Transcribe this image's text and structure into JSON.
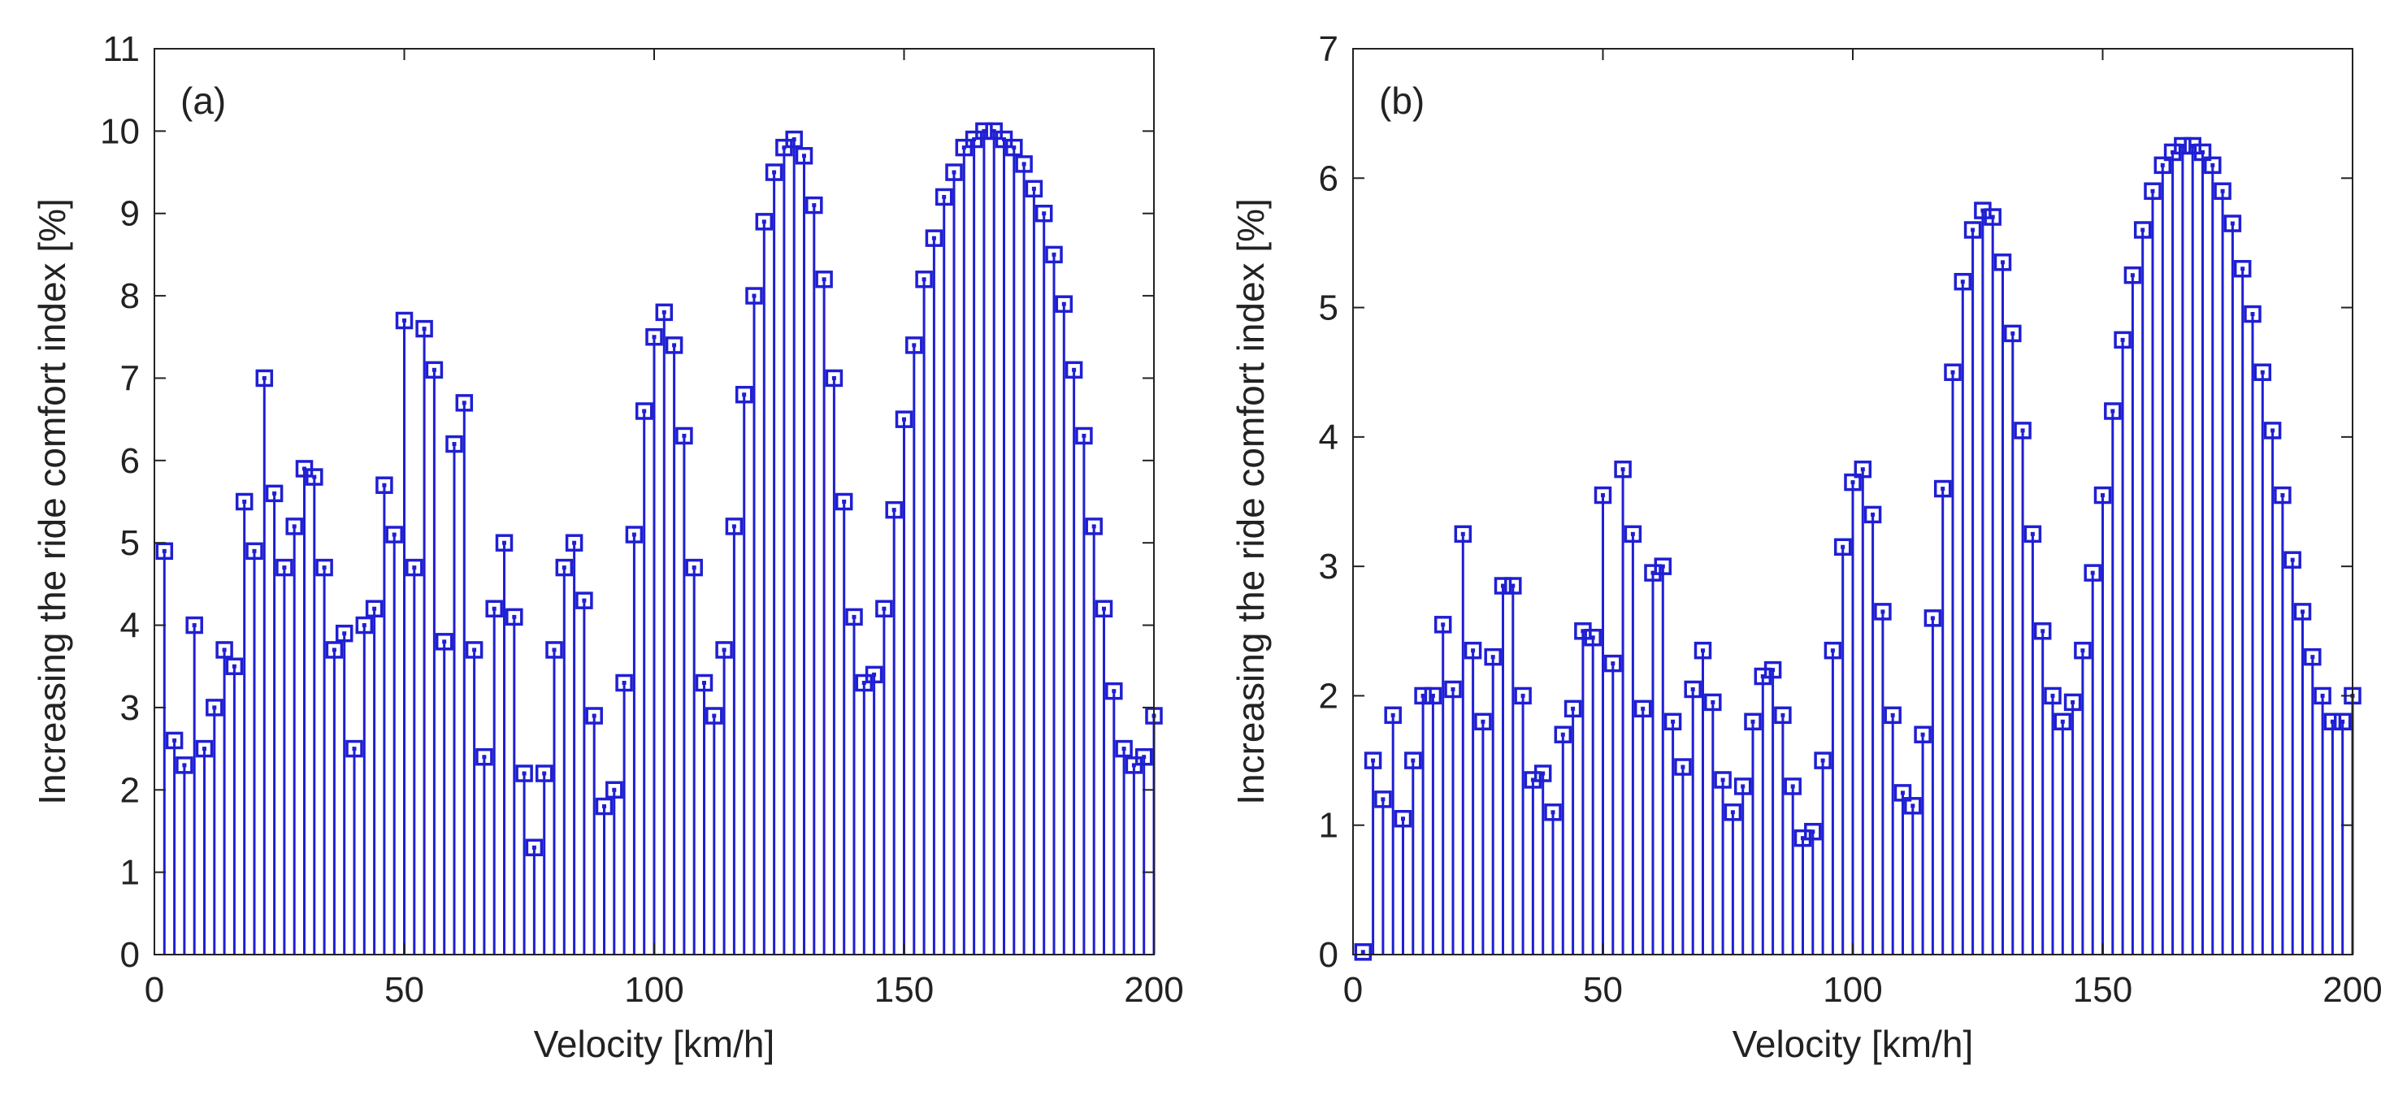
{
  "chart_data": [
    {
      "type": "stem",
      "panel_label": "(a)",
      "title": "",
      "xlabel": "Velocity [km/h]",
      "ylabel": "Increasing the ride comfort index [%]",
      "xlim": [
        0,
        200
      ],
      "ylim": [
        0,
        11
      ],
      "xticks": [
        "0",
        "50",
        "100",
        "150",
        "200"
      ],
      "yticks": [
        "0",
        "1",
        "2",
        "3",
        "4",
        "5",
        "6",
        "7",
        "8",
        "9",
        "10",
        "11"
      ],
      "marker": "square",
      "color": "#1f1fd4",
      "x": [
        2,
        4,
        6,
        8,
        10,
        12,
        14,
        16,
        18,
        20,
        22,
        24,
        26,
        28,
        30,
        32,
        34,
        36,
        38,
        40,
        42,
        44,
        46,
        48,
        50,
        52,
        54,
        56,
        58,
        60,
        62,
        64,
        66,
        68,
        70,
        72,
        74,
        76,
        78,
        80,
        82,
        84,
        86,
        88,
        90,
        92,
        94,
        96,
        98,
        100,
        102,
        104,
        106,
        108,
        110,
        112,
        114,
        116,
        118,
        120,
        122,
        124,
        126,
        128,
        130,
        132,
        134,
        136,
        138,
        140,
        142,
        144,
        146,
        148,
        150,
        152,
        154,
        156,
        158,
        160,
        162,
        164,
        166,
        168,
        170,
        172,
        174,
        176,
        178,
        180,
        182,
        184,
        186,
        188,
        190,
        192,
        194,
        196,
        198,
        200
      ],
      "values": [
        4.9,
        2.6,
        2.3,
        4.0,
        2.5,
        3.0,
        3.7,
        3.5,
        5.5,
        4.9,
        7.0,
        5.6,
        4.7,
        5.2,
        5.9,
        5.8,
        4.7,
        3.7,
        3.9,
        2.5,
        4.0,
        4.2,
        5.7,
        5.1,
        7.7,
        4.7,
        7.6,
        7.1,
        3.8,
        6.2,
        6.7,
        3.7,
        2.4,
        4.2,
        5.0,
        4.1,
        2.2,
        1.3,
        2.2,
        3.7,
        4.7,
        5.0,
        4.3,
        2.9,
        1.8,
        2.0,
        3.3,
        5.1,
        6.6,
        7.5,
        7.8,
        7.4,
        6.3,
        4.7,
        3.3,
        2.9,
        3.7,
        5.2,
        6.8,
        8.0,
        8.9,
        9.5,
        9.8,
        9.9,
        9.7,
        9.1,
        8.2,
        7.0,
        5.5,
        4.1,
        3.3,
        3.4,
        4.2,
        5.4,
        6.5,
        7.4,
        8.2,
        8.7,
        9.2,
        9.5,
        9.8,
        9.9,
        10.0,
        10.0,
        9.9,
        9.8,
        9.6,
        9.3,
        9.0,
        8.5,
        7.9,
        7.1,
        6.3,
        5.2,
        4.2,
        3.2,
        2.5,
        2.3,
        2.4,
        2.9
      ]
    },
    {
      "type": "stem",
      "panel_label": "(b)",
      "title": "",
      "xlabel": "Velocity [km/h]",
      "ylabel": "Increasing the ride comfort index [%]",
      "xlim": [
        0,
        200
      ],
      "ylim": [
        0,
        7
      ],
      "xticks": [
        "0",
        "50",
        "100",
        "150",
        "200"
      ],
      "yticks": [
        "0",
        "1",
        "2",
        "3",
        "4",
        "5",
        "6",
        "7"
      ],
      "marker": "square",
      "color": "#1f1fd4",
      "x": [
        2,
        4,
        6,
        8,
        10,
        12,
        14,
        16,
        18,
        20,
        22,
        24,
        26,
        28,
        30,
        32,
        34,
        36,
        38,
        40,
        42,
        44,
        46,
        48,
        50,
        52,
        54,
        56,
        58,
        60,
        62,
        64,
        66,
        68,
        70,
        72,
        74,
        76,
        78,
        80,
        82,
        84,
        86,
        88,
        90,
        92,
        94,
        96,
        98,
        100,
        102,
        104,
        106,
        108,
        110,
        112,
        114,
        116,
        118,
        120,
        122,
        124,
        126,
        128,
        130,
        132,
        134,
        136,
        138,
        140,
        142,
        144,
        146,
        148,
        150,
        152,
        154,
        156,
        158,
        160,
        162,
        164,
        166,
        168,
        170,
        172,
        174,
        176,
        178,
        180,
        182,
        184,
        186,
        188,
        190,
        192,
        194,
        196,
        198,
        200
      ],
      "values": [
        0.02,
        1.5,
        1.2,
        1.85,
        1.05,
        1.5,
        2.0,
        2.0,
        2.55,
        2.05,
        3.25,
        2.35,
        1.8,
        2.3,
        2.85,
        2.85,
        2.0,
        1.35,
        1.4,
        1.1,
        1.7,
        1.9,
        2.5,
        2.45,
        3.55,
        2.25,
        3.75,
        3.25,
        1.9,
        2.95,
        3.0,
        1.8,
        1.45,
        2.05,
        2.35,
        1.95,
        1.35,
        1.1,
        1.3,
        1.8,
        2.15,
        2.2,
        1.85,
        1.3,
        0.9,
        0.95,
        1.5,
        2.35,
        3.15,
        3.65,
        3.75,
        3.4,
        2.65,
        1.85,
        1.25,
        1.15,
        1.7,
        2.6,
        3.6,
        4.5,
        5.2,
        5.6,
        5.75,
        5.7,
        5.35,
        4.8,
        4.05,
        3.25,
        2.5,
        2.0,
        1.8,
        1.95,
        2.35,
        2.95,
        3.55,
        4.2,
        4.75,
        5.25,
        5.6,
        5.9,
        6.1,
        6.2,
        6.25,
        6.25,
        6.2,
        6.1,
        5.9,
        5.65,
        5.3,
        4.95,
        4.5,
        4.05,
        3.55,
        3.05,
        2.65,
        2.3,
        2.0,
        1.8,
        1.8,
        2.0
      ]
    }
  ]
}
